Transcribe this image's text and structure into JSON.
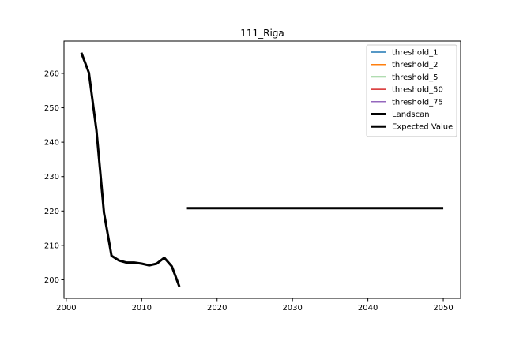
{
  "chart_data": {
    "type": "line",
    "title": "111_Riga",
    "xlabel": "",
    "ylabel": "",
    "xlim": [
      1999.7,
      2052.3
    ],
    "ylim": [
      194.6,
      269.4
    ],
    "x_ticks": [
      2000,
      2010,
      2020,
      2030,
      2040,
      2050
    ],
    "x_tick_labels": [
      "2000",
      "2010",
      "2020",
      "2030",
      "2040",
      "2050"
    ],
    "y_ticks": [
      200,
      210,
      220,
      230,
      240,
      250,
      260
    ],
    "y_tick_labels": [
      "200",
      "210",
      "220",
      "230",
      "240",
      "250",
      "260"
    ],
    "grid": false,
    "legend_position": "top-right",
    "series": [
      {
        "name": "threshold_1",
        "color": "#1f77b4",
        "linewidth": 1.5,
        "x": [],
        "y": []
      },
      {
        "name": "threshold_2",
        "color": "#ff7f0e",
        "linewidth": 1.5,
        "x": [],
        "y": []
      },
      {
        "name": "threshold_5",
        "color": "#2ca02c",
        "linewidth": 1.5,
        "x": [],
        "y": []
      },
      {
        "name": "threshold_50",
        "color": "#d62728",
        "linewidth": 1.5,
        "x": [],
        "y": []
      },
      {
        "name": "threshold_75",
        "color": "#9467bd",
        "linewidth": 1.5,
        "x": [],
        "y": []
      },
      {
        "name": "Landscan",
        "color": "#000000",
        "linewidth": 3,
        "x": [
          2002,
          2003,
          2004,
          2005,
          2006,
          2007,
          2008,
          2009,
          2010,
          2011,
          2012,
          2013,
          2014,
          2015
        ],
        "y": [
          266,
          260.2,
          243.5,
          219.5,
          207,
          205.6,
          205,
          205,
          204.7,
          204.2,
          204.7,
          206.4,
          203.9,
          198
        ]
      },
      {
        "name": "Expected Value",
        "color": "#000000",
        "linewidth": 3,
        "x": [
          2016,
          2050
        ],
        "y": [
          220.8,
          220.8
        ]
      }
    ]
  }
}
